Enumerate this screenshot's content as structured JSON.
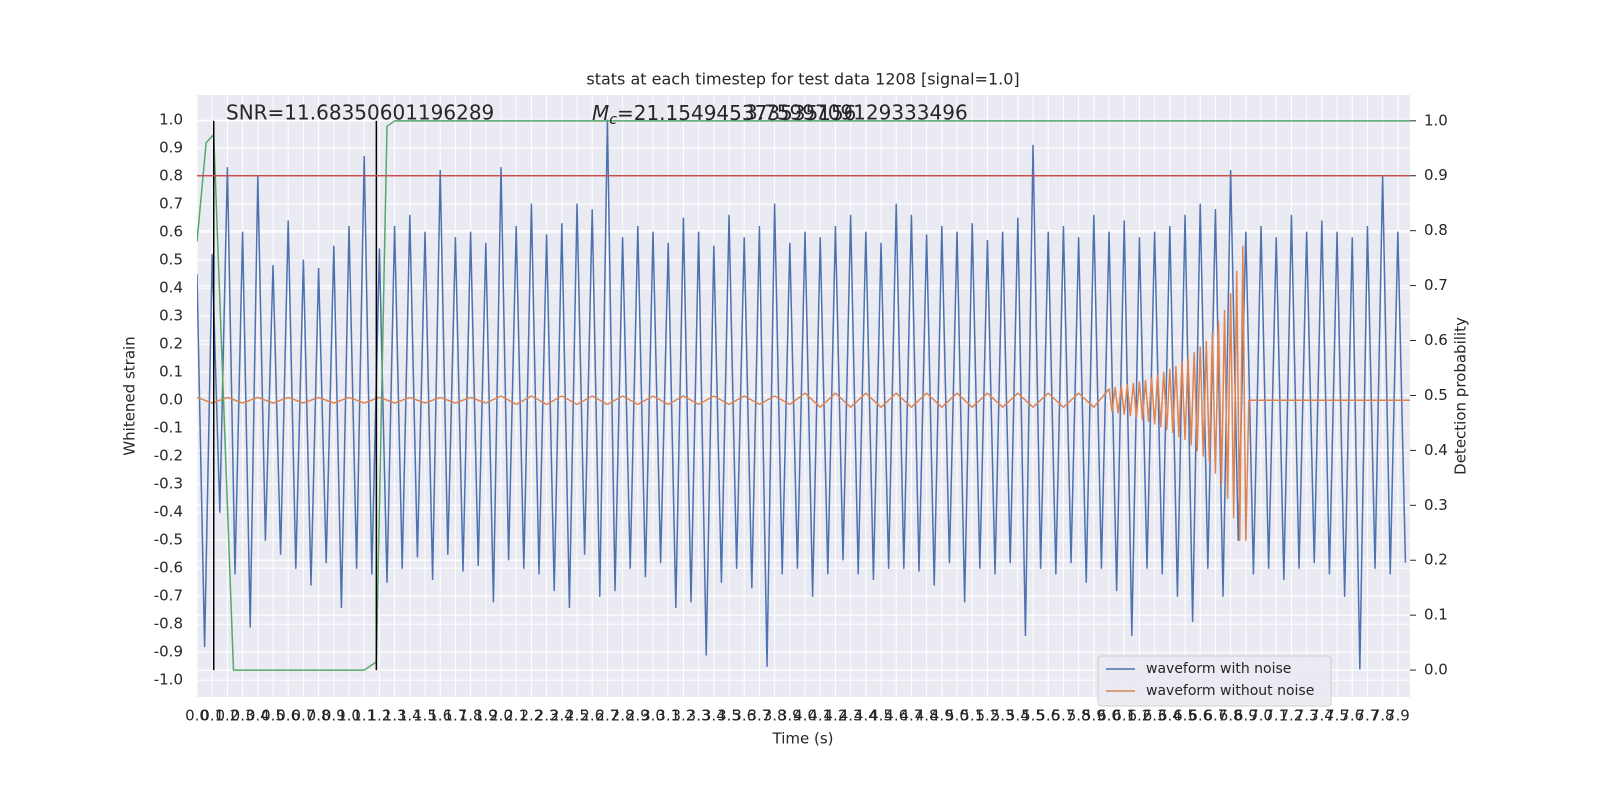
{
  "chart_data": {
    "type": "line",
    "title": "stats at each timestep for test data 1208 [signal=1.0]",
    "x_label": "Time (s)",
    "y_label": "Whitened strain",
    "y2_label": "Detection probability",
    "annotations": [
      {
        "text": "SNR=11.68350601196289"
      },
      {
        "symbol": "M",
        "subscript": "c",
        "text": "=21.154945373535156"
      },
      {
        "text": "3.7599709129333496"
      }
    ],
    "xlim": [
      0,
      7.98
    ],
    "ylim": [
      -1.06,
      1.09
    ],
    "y2lim": [
      -0.049,
      1.047
    ],
    "xticks": [
      {
        "value": 0,
        "label": "0.0"
      },
      0.1,
      0.2,
      0.3,
      0.4,
      0.5,
      0.6,
      0.7,
      0.8,
      0.9,
      {
        "value": 1,
        "label": "1.0"
      },
      1.1,
      1.2,
      1.3,
      1.4,
      1.5,
      1.6,
      1.7,
      1.8,
      1.9,
      {
        "value": 2,
        "label": "2.0"
      },
      2.1,
      2.2,
      2.3,
      2.4,
      2.5,
      2.6,
      2.7,
      2.8,
      2.9,
      {
        "value": 3,
        "label": "3.0"
      },
      3.1,
      3.2,
      3.3,
      3.4,
      3.5,
      3.6,
      3.7,
      3.8,
      3.9,
      {
        "value": 4,
        "label": "4.0"
      },
      4.1,
      4.2,
      4.3,
      4.4,
      4.5,
      4.6,
      4.7,
      4.8,
      4.9,
      {
        "value": 5,
        "label": "5.0"
      },
      5.1,
      5.2,
      5.3,
      5.4,
      5.5,
      5.6,
      5.7,
      5.8,
      5.9,
      {
        "value": 6,
        "label": "6.0"
      },
      6.1,
      6.2,
      6.3,
      6.4,
      6.5,
      6.6,
      6.7,
      6.8,
      6.9,
      {
        "value": 7,
        "label": "7.0"
      },
      7.1,
      7.2,
      7.3,
      7.4,
      7.5,
      7.6,
      7.7,
      7.8,
      7.9
    ],
    "yticks": [
      {
        "value": -1,
        "label": "-1.0"
      },
      -0.9,
      -0.8,
      -0.7,
      -0.6,
      -0.5,
      -0.4,
      -0.3,
      -0.2,
      -0.1,
      {
        "value": 0,
        "label": "0.0"
      },
      0.1,
      0.2,
      0.3,
      0.4,
      0.5,
      0.6,
      0.7,
      0.8,
      0.9,
      {
        "value": 1,
        "label": "1.0"
      }
    ],
    "y2ticks": [
      {
        "value": 0,
        "label": "0.0"
      },
      0.1,
      0.2,
      0.3,
      0.4,
      0.5,
      0.6,
      0.7,
      0.8,
      0.9,
      {
        "value": 1,
        "label": "1.0"
      }
    ],
    "grid": true,
    "background": "#eaeaf2",
    "legend": "lower right",
    "series": [
      {
        "name": "waveform with noise",
        "color": "#4c72b0",
        "x": [
          0,
          0.05,
          0.1,
          0.15,
          0.2,
          0.25,
          0.3,
          0.35,
          0.4,
          0.45,
          0.5,
          0.55,
          0.6,
          0.65,
          0.7,
          0.75,
          0.8,
          0.85,
          0.9,
          0.95,
          1,
          1.05,
          1.1,
          1.15,
          1.2,
          1.25,
          1.3,
          1.35,
          1.4,
          1.45,
          1.5,
          1.55,
          1.6,
          1.65,
          1.7,
          1.75,
          1.8,
          1.85,
          1.9,
          1.95,
          2,
          2.05,
          2.1,
          2.15,
          2.2,
          2.25,
          2.3,
          2.35,
          2.4,
          2.45,
          2.5,
          2.55,
          2.6,
          2.65,
          2.7,
          2.75,
          2.8,
          2.85,
          2.9,
          2.95,
          3,
          3.05,
          3.1,
          3.15,
          3.2,
          3.25,
          3.3,
          3.35,
          3.4,
          3.45,
          3.5,
          3.55,
          3.6,
          3.65,
          3.7,
          3.75,
          3.8,
          3.85,
          3.9,
          3.95,
          4,
          4.05,
          4.1,
          4.15,
          4.2,
          4.25,
          4.3,
          4.35,
          4.4,
          4.45,
          4.5,
          4.55,
          4.6,
          4.65,
          4.7,
          4.75,
          4.8,
          4.85,
          4.9,
          4.95,
          5,
          5.05,
          5.1,
          5.15,
          5.2,
          5.25,
          5.3,
          5.35,
          5.4,
          5.45,
          5.5,
          5.55,
          5.6,
          5.65,
          5.7,
          5.75,
          5.8,
          5.85,
          5.9,
          5.95,
          6,
          6.05,
          6.1,
          6.15,
          6.2,
          6.25,
          6.3,
          6.35,
          6.4,
          6.45,
          6.5,
          6.55,
          6.6,
          6.65,
          6.7,
          6.75,
          6.8,
          6.85,
          6.9,
          6.95,
          7,
          7.05,
          7.1,
          7.15,
          7.2,
          7.25,
          7.3,
          7.35,
          7.4,
          7.45,
          7.5,
          7.55,
          7.6,
          7.65,
          7.7,
          7.75,
          7.8,
          7.85,
          7.9,
          7.95
        ],
        "values": [
          0.45,
          -0.88,
          0.52,
          -0.4,
          0.83,
          -0.62,
          0.6,
          -0.81,
          0.8,
          -0.5,
          0.48,
          -0.55,
          0.64,
          -0.6,
          0.5,
          -0.66,
          0.47,
          -0.58,
          0.55,
          -0.74,
          0.62,
          -0.6,
          0.87,
          -0.62,
          0.54,
          -0.65,
          0.62,
          -0.6,
          0.66,
          -0.56,
          0.6,
          -0.64,
          0.82,
          -0.55,
          0.58,
          -0.61,
          0.6,
          -0.59,
          0.56,
          -0.72,
          0.83,
          -0.57,
          0.62,
          -0.6,
          0.7,
          -0.62,
          0.59,
          -0.68,
          0.63,
          -0.74,
          0.7,
          -0.55,
          0.68,
          -0.7,
          1.0,
          -0.68,
          0.58,
          -0.6,
          0.62,
          -0.63,
          0.6,
          -0.58,
          0.56,
          -0.74,
          0.65,
          -0.72,
          0.6,
          -0.91,
          0.55,
          -0.65,
          0.66,
          -0.6,
          0.58,
          -0.67,
          0.62,
          -0.95,
          0.7,
          -0.62,
          0.56,
          -0.6,
          0.6,
          -0.7,
          0.58,
          -0.62,
          0.62,
          -0.57,
          0.66,
          -0.62,
          0.6,
          -0.64,
          0.56,
          -0.6,
          0.7,
          -0.6,
          0.66,
          -0.61,
          0.59,
          -0.66,
          0.62,
          -0.58,
          0.6,
          -0.72,
          0.63,
          -0.6,
          0.57,
          -0.62,
          0.6,
          -0.58,
          0.65,
          -0.84,
          0.91,
          -0.6,
          0.6,
          -0.62,
          0.62,
          -0.58,
          0.58,
          -0.65,
          0.66,
          -0.6,
          0.6,
          -0.68,
          0.64,
          -0.84,
          0.58,
          -0.6,
          0.6,
          -0.62,
          0.62,
          -0.7,
          0.66,
          -0.79,
          0.7,
          -0.6,
          0.68,
          -0.7,
          0.82,
          -0.5,
          0.6,
          -0.62,
          0.62,
          -0.6,
          0.58,
          -0.64,
          0.66,
          -0.6,
          0.6,
          -0.58,
          0.64,
          -0.62,
          0.6,
          -0.7,
          0.58,
          -0.96,
          0.62,
          -0.6,
          0.8,
          -0.62,
          0.6,
          -0.58
        ]
      },
      {
        "name": "waveform without noise",
        "color": "#dd8452",
        "x": [
          0,
          0.1,
          0.2,
          0.3,
          0.4,
          0.5,
          0.6,
          0.7,
          0.8,
          0.9,
          1,
          1.1,
          1.2,
          1.3,
          1.4,
          1.5,
          1.6,
          1.7,
          1.8,
          1.9,
          2,
          2.1,
          2.2,
          2.3,
          2.4,
          2.5,
          2.6,
          2.7,
          2.8,
          2.9,
          3,
          3.1,
          3.2,
          3.3,
          3.4,
          3.5,
          3.6,
          3.7,
          3.8,
          3.9,
          4,
          4.1,
          4.2,
          4.3,
          4.4,
          4.5,
          4.6,
          4.7,
          4.8,
          4.9,
          5,
          5.1,
          5.2,
          5.3,
          5.4,
          5.5,
          5.6,
          5.7,
          5.8,
          5.9,
          6,
          6.02,
          6.04,
          6.06,
          6.08,
          6.1,
          6.12,
          6.14,
          6.16,
          6.18,
          6.2,
          6.22,
          6.24,
          6.26,
          6.28,
          6.3,
          6.32,
          6.34,
          6.36,
          6.38,
          6.4,
          6.42,
          6.44,
          6.46,
          6.48,
          6.5,
          6.52,
          6.54,
          6.56,
          6.58,
          6.6,
          6.62,
          6.64,
          6.66,
          6.68,
          6.7,
          6.72,
          6.74,
          6.76,
          6.78,
          6.8,
          6.82,
          6.84,
          6.86,
          6.88,
          6.9,
          6.92,
          7.98
        ],
        "values": [
          0.01,
          -0.01,
          0.01,
          -0.01,
          0.01,
          -0.01,
          0.01,
          -0.01,
          0.01,
          -0.01,
          0.01,
          -0.01,
          0.01,
          -0.01,
          0.01,
          -0.01,
          0.01,
          -0.01,
          0.01,
          -0.01,
          0.015,
          -0.015,
          0.015,
          -0.015,
          0.015,
          -0.015,
          0.015,
          -0.015,
          0.015,
          -0.015,
          0.015,
          -0.015,
          0.015,
          -0.015,
          0.015,
          -0.015,
          0.015,
          -0.015,
          0.015,
          -0.015,
          0.025,
          -0.025,
          0.025,
          -0.025,
          0.025,
          -0.025,
          0.025,
          -0.025,
          0.025,
          -0.025,
          0.025,
          -0.025,
          0.025,
          -0.025,
          0.025,
          -0.025,
          0.025,
          -0.025,
          0.025,
          -0.025,
          0.04,
          -0.04,
          0.045,
          -0.045,
          0.05,
          -0.05,
          0.055,
          -0.055,
          0.06,
          -0.06,
          0.065,
          -0.07,
          0.07,
          -0.075,
          0.08,
          -0.085,
          0.09,
          -0.095,
          0.1,
          -0.105,
          0.11,
          -0.115,
          0.12,
          -0.13,
          0.135,
          -0.14,
          0.15,
          -0.16,
          0.17,
          -0.18,
          0.19,
          -0.2,
          0.21,
          -0.22,
          0.24,
          -0.26,
          0.28,
          -0.3,
          0.32,
          -0.35,
          0.38,
          -0.42,
          0.46,
          -0.5,
          0.55,
          -0.5,
          0,
          0
        ]
      },
      {
        "color": "#55a868",
        "axis": "y2",
        "x": [
          0,
          0.06,
          0.11,
          0.24,
          1.1,
          1.18,
          1.25,
          1.3,
          7.98
        ],
        "values": [
          0.78,
          0.96,
          0.975,
          0,
          0,
          0.015,
          0.99,
          1,
          1
        ]
      }
    ],
    "vertical_lines": [
      0.11,
      1.18
    ],
    "vertical_line_color": "#000000",
    "threshold_y2": 0.9,
    "threshold_color": "#c44e52"
  }
}
